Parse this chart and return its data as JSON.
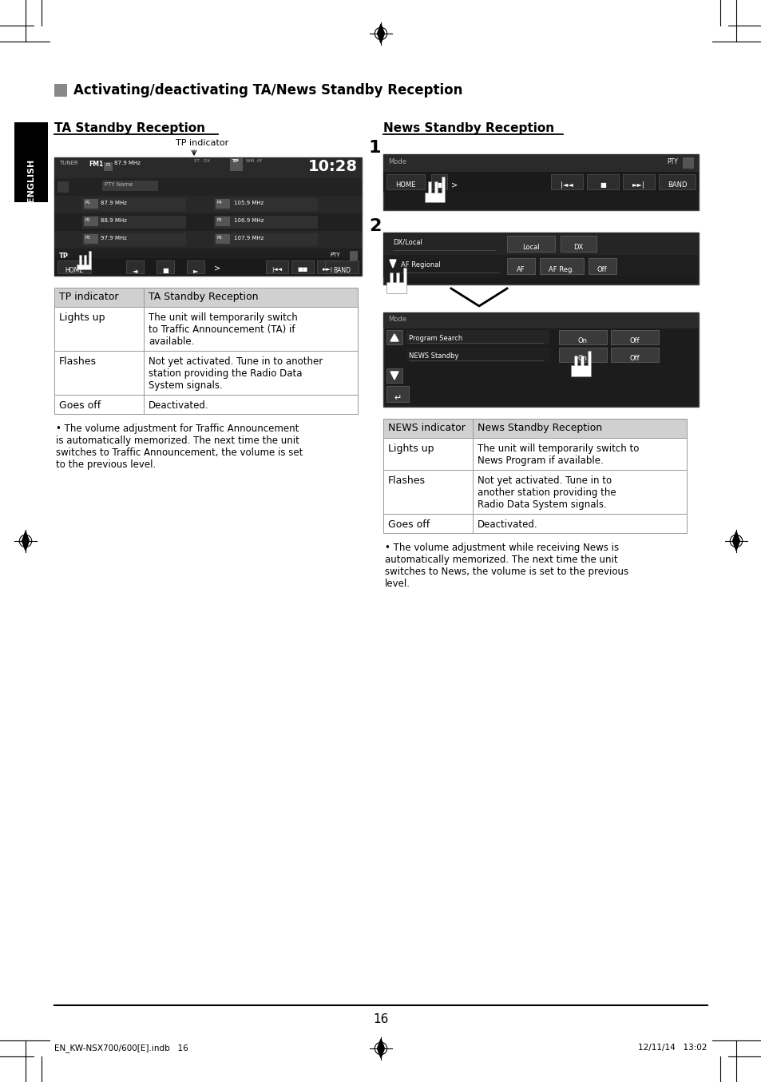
{
  "page_bg": "#ffffff",
  "page_number": "16",
  "title": "Activating/deactivating TA/News Standby Reception",
  "left_section_title": "TA Standby Reception",
  "right_section_title": "News Standby Reception",
  "ta_table_header": [
    "TP indicator",
    "TA Standby Reception"
  ],
  "ta_table_rows": [
    [
      "Lights up",
      "The unit will temporarily switch\nto Traffic Announcement (TA) if\navailable."
    ],
    [
      "Flashes",
      "Not yet activated. Tune in to another\nstation providing the Radio Data\nSystem signals."
    ],
    [
      "Goes off",
      "Deactivated."
    ]
  ],
  "news_table_header": [
    "NEWS indicator",
    "News Standby Reception"
  ],
  "news_table_rows": [
    [
      "Lights up",
      "The unit will temporarily switch to\nNews Program if available."
    ],
    [
      "Flashes",
      "Not yet activated. Tune in to\nanother station providing the\nRadio Data System signals."
    ],
    [
      "Goes off",
      "Deactivated."
    ]
  ],
  "ta_note": "The volume adjustment for Traffic Announcement\nis automatically memorized. The next time the unit\nswitches to Traffic Announcement, the volume is set\nto the previous level.",
  "news_note": "The volume adjustment while receiving News is\nautomatically memorized. The next time the unit\nswitches to News, the volume is set to the previous\nlevel.",
  "footer_left": "EN_KW-NSX700/600[E].indb   16",
  "footer_right": "12/11/14   13:02",
  "english_label": "ENGLISH",
  "table_header_bg": "#d0d0d0",
  "table_alt_bg": "#ffffff",
  "border_color": "#999999",
  "screen_bg": "#1c1c1c",
  "screen_bar_bg": "#2d2d2d",
  "screen_row_bg": "#252525"
}
